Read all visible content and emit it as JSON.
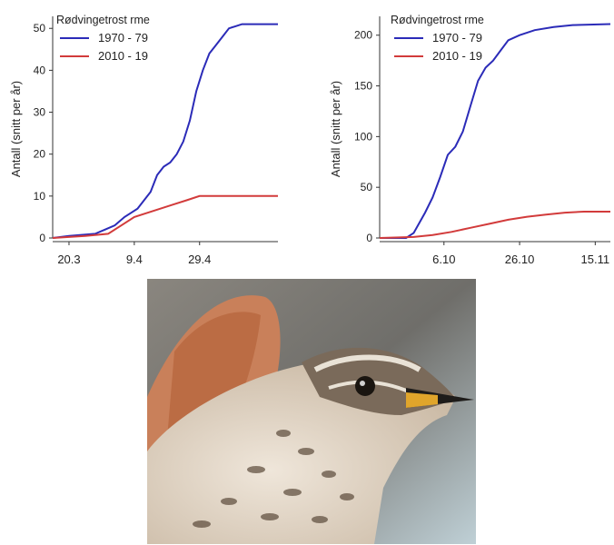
{
  "chart_data": [
    {
      "type": "line",
      "title": "",
      "legend_title": "Rødvingetrost rme",
      "ylabel": "Antall (snitt per år)",
      "xlabel": "",
      "xticks": [
        "20.3",
        "9.4",
        "29.4"
      ],
      "xlim": [
        "15.3",
        "23.5"
      ],
      "ylim": [
        0,
        52
      ],
      "yticks": [
        0,
        10,
        20,
        30,
        40,
        50
      ],
      "legend_position": "top-left",
      "series": [
        {
          "name": "1970 - 79",
          "color": "#2b2bb8",
          "points": [
            [
              "15.3",
              0
            ],
            [
              "20.3",
              0.5
            ],
            [
              "28.3",
              1
            ],
            [
              "31.3",
              2
            ],
            [
              "3.4",
              3
            ],
            [
              "6.4",
              5
            ],
            [
              "8.4",
              6
            ],
            [
              "10.4",
              7
            ],
            [
              "12.4",
              9
            ],
            [
              "14.4",
              11
            ],
            [
              "16.4",
              15
            ],
            [
              "18.4",
              17
            ],
            [
              "20.4",
              18
            ],
            [
              "22.4",
              20
            ],
            [
              "24.4",
              23
            ],
            [
              "26.4",
              28
            ],
            [
              "28.4",
              35
            ],
            [
              "30.4",
              40
            ],
            [
              "2.5",
              44
            ],
            [
              "4.5",
              46
            ],
            [
              "6.5",
              48
            ],
            [
              "8.5",
              50
            ],
            [
              "10.5",
              50.5
            ],
            [
              "12.5",
              51
            ],
            [
              "23.5",
              51
            ]
          ]
        },
        {
          "name": "2010 - 19",
          "color": "#d23b3b",
          "points": [
            [
              "15.3",
              0
            ],
            [
              "25.3",
              0.5
            ],
            [
              "1.4",
              1
            ],
            [
              "5.4",
              3
            ],
            [
              "9.4",
              5
            ],
            [
              "13.4",
              6
            ],
            [
              "17.4",
              7
            ],
            [
              "21.4",
              8
            ],
            [
              "25.4",
              9
            ],
            [
              "29.4",
              10
            ],
            [
              "23.5",
              10
            ]
          ]
        }
      ]
    },
    {
      "type": "line",
      "title": "",
      "legend_title": "Rødvingetrost rme",
      "ylabel": "Antall (snitt per år)",
      "xlabel": "",
      "xticks": [
        "6.10",
        "26.10",
        "15.11"
      ],
      "xlim": [
        "19.9",
        "19.11"
      ],
      "ylim": [
        0,
        215
      ],
      "yticks": [
        0,
        50,
        100,
        150,
        200
      ],
      "legend_position": "top-left",
      "series": [
        {
          "name": "1970 - 79",
          "color": "#2b2bb8",
          "points": [
            [
              "19.9",
              0
            ],
            [
              "26.9",
              0
            ],
            [
              "28.9",
              5
            ],
            [
              "1.10",
              25
            ],
            [
              "3.10",
              40
            ],
            [
              "5.10",
              60
            ],
            [
              "7.10",
              82
            ],
            [
              "9.10",
              90
            ],
            [
              "11.10",
              105
            ],
            [
              "13.10",
              130
            ],
            [
              "15.10",
              155
            ],
            [
              "17.10",
              168
            ],
            [
              "19.10",
              175
            ],
            [
              "21.10",
              185
            ],
            [
              "23.10",
              195
            ],
            [
              "26.10",
              200
            ],
            [
              "30.10",
              205
            ],
            [
              "4.11",
              208
            ],
            [
              "9.11",
              210
            ],
            [
              "19.11",
              211
            ]
          ]
        },
        {
          "name": "2010 - 19",
          "color": "#d23b3b",
          "points": [
            [
              "19.9",
              0
            ],
            [
              "28.9",
              1
            ],
            [
              "3.10",
              3
            ],
            [
              "8.10",
              6
            ],
            [
              "13.10",
              10
            ],
            [
              "18.10",
              14
            ],
            [
              "23.10",
              18
            ],
            [
              "28.10",
              21
            ],
            [
              "2.11",
              23
            ],
            [
              "7.11",
              25
            ],
            [
              "12.11",
              26
            ],
            [
              "19.11",
              26
            ]
          ]
        }
      ]
    }
  ],
  "photo": {
    "subject": "redwing-thrush"
  }
}
